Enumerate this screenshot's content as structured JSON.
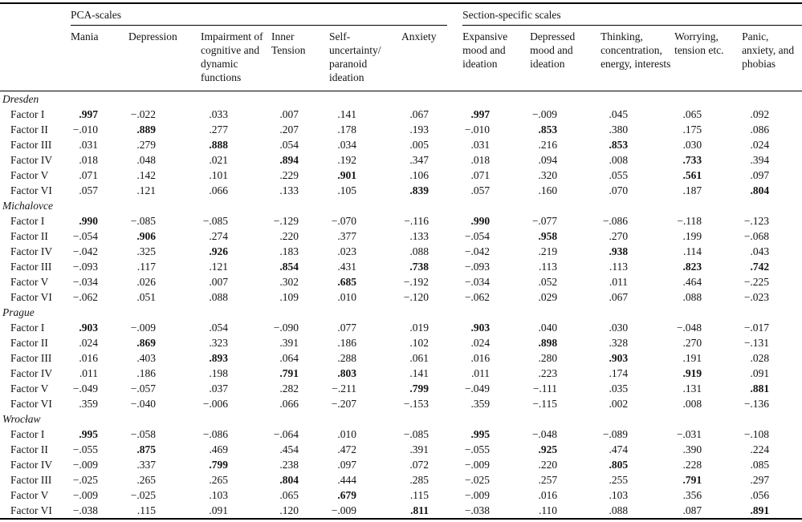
{
  "table": {
    "group_headers": [
      {
        "label": "PCA-scales",
        "span": 6
      },
      {
        "label": "Section-specific scales",
        "span": 5
      }
    ],
    "columns": [
      "Mania",
      "Depression",
      "Impairment of cognitive and dynamic functions",
      "Inner Tension",
      "Self-uncertainty/ paranoid ideation",
      "Anxiety",
      "Expansive mood and ideation",
      "Depressed mood and ideation",
      "Thinking, concentration, energy, interests",
      "Worrying, tension etc.",
      "Panic, anxiety, and phobias"
    ],
    "sections": [
      {
        "city": "Dresden",
        "rows": [
          {
            "label": "Factor I",
            "values": [
              ".997",
              "−.022",
              ".033",
              ".007",
              ".141",
              ".067",
              ".997",
              "−.009",
              ".045",
              ".065",
              ".092"
            ],
            "bold": [
              0,
              6
            ]
          },
          {
            "label": "Factor II",
            "values": [
              "−.010",
              ".889",
              ".277",
              ".207",
              ".178",
              ".193",
              "−.010",
              ".853",
              ".380",
              ".175",
              ".086"
            ],
            "bold": [
              1,
              7
            ]
          },
          {
            "label": "Factor III",
            "values": [
              ".031",
              ".279",
              ".888",
              ".054",
              ".034",
              ".005",
              ".031",
              ".216",
              ".853",
              ".030",
              ".024"
            ],
            "bold": [
              2,
              8
            ]
          },
          {
            "label": "Factor IV",
            "values": [
              ".018",
              ".048",
              ".021",
              ".894",
              ".192",
              ".347",
              ".018",
              ".094",
              ".008",
              ".733",
              ".394"
            ],
            "bold": [
              3,
              9
            ]
          },
          {
            "label": "Factor V",
            "values": [
              ".071",
              ".142",
              ".101",
              ".229",
              ".901",
              ".106",
              ".071",
              ".320",
              ".055",
              ".561",
              ".097"
            ],
            "bold": [
              4,
              9
            ]
          },
          {
            "label": "Factor VI",
            "values": [
              ".057",
              ".121",
              ".066",
              ".133",
              ".105",
              ".839",
              ".057",
              ".160",
              ".070",
              ".187",
              ".804"
            ],
            "bold": [
              5,
              10
            ]
          }
        ]
      },
      {
        "city": "Michalovce",
        "rows": [
          {
            "label": "Factor I",
            "values": [
              ".990",
              "−.085",
              "−.085",
              "−.129",
              "−.070",
              "−.116",
              ".990",
              "−.077",
              "−.086",
              "−.118",
              "−.123"
            ],
            "bold": [
              0,
              6
            ]
          },
          {
            "label": "Factor II",
            "values": [
              "−.054",
              ".906",
              ".274",
              ".220",
              ".377",
              ".133",
              "−.054",
              ".958",
              ".270",
              ".199",
              "−.068"
            ],
            "bold": [
              1,
              7
            ]
          },
          {
            "label": "Factor IV",
            "values": [
              "−.042",
              ".325",
              ".926",
              ".183",
              ".023",
              ".088",
              "−.042",
              ".219",
              ".938",
              ".114",
              ".043"
            ],
            "bold": [
              2,
              8
            ]
          },
          {
            "label": "Factor III",
            "values": [
              "−.093",
              ".117",
              ".121",
              ".854",
              ".431",
              ".738",
              "−.093",
              ".113",
              ".113",
              ".823",
              ".742"
            ],
            "bold": [
              3,
              5,
              9,
              10
            ]
          },
          {
            "label": "Factor V",
            "values": [
              "−.034",
              ".026",
              ".007",
              ".302",
              ".685",
              "−.192",
              "−.034",
              ".052",
              ".011",
              ".464",
              "−.225"
            ],
            "bold": [
              4
            ]
          },
          {
            "label": "Factor VI",
            "values": [
              "−.062",
              ".051",
              ".088",
              ".109",
              ".010",
              "−.120",
              "−.062",
              ".029",
              ".067",
              ".088",
              "−.023"
            ],
            "bold": []
          }
        ]
      },
      {
        "city": "Prague",
        "rows": [
          {
            "label": "Factor I",
            "values": [
              ".903",
              "−.009",
              ".054",
              "−.090",
              ".077",
              ".019",
              ".903",
              ".040",
              ".030",
              "−.048",
              "−.017"
            ],
            "bold": [
              0,
              6
            ]
          },
          {
            "label": "Factor II",
            "values": [
              ".024",
              ".869",
              ".323",
              ".391",
              ".186",
              ".102",
              ".024",
              ".898",
              ".328",
              ".270",
              "−.131"
            ],
            "bold": [
              1,
              7
            ]
          },
          {
            "label": "Factor III",
            "values": [
              ".016",
              ".403",
              ".893",
              ".064",
              ".288",
              ".061",
              ".016",
              ".280",
              ".903",
              ".191",
              ".028"
            ],
            "bold": [
              2,
              8
            ]
          },
          {
            "label": "Factor IV",
            "values": [
              ".011",
              ".186",
              ".198",
              ".791",
              ".803",
              ".141",
              ".011",
              ".223",
              ".174",
              ".919",
              ".091"
            ],
            "bold": [
              3,
              4,
              9
            ]
          },
          {
            "label": "Factor V",
            "values": [
              "−.049",
              "−.057",
              ".037",
              ".282",
              "−.211",
              ".799",
              "−.049",
              "−.111",
              ".035",
              ".131",
              ".881"
            ],
            "bold": [
              5,
              10
            ]
          },
          {
            "label": "Factor VI",
            "values": [
              ".359",
              "−.040",
              "−.006",
              ".066",
              "−.207",
              "−.153",
              ".359",
              "−.115",
              ".002",
              ".008",
              "−.136"
            ],
            "bold": []
          }
        ]
      },
      {
        "city": "Wrocław",
        "rows": [
          {
            "label": "Factor I",
            "values": [
              ".995",
              "−.058",
              "−.086",
              "−.064",
              ".010",
              "−.085",
              ".995",
              "−.048",
              "−.089",
              "−.031",
              "−.108"
            ],
            "bold": [
              0,
              6
            ]
          },
          {
            "label": "Factor II",
            "values": [
              "−.055",
              ".875",
              ".469",
              ".454",
              ".472",
              ".391",
              "−.055",
              ".925",
              ".474",
              ".390",
              ".224"
            ],
            "bold": [
              1,
              7
            ]
          },
          {
            "label": "Factor IV",
            "values": [
              "−.009",
              ".337",
              ".799",
              ".238",
              ".097",
              ".072",
              "−.009",
              ".220",
              ".805",
              ".228",
              ".085"
            ],
            "bold": [
              2,
              8
            ]
          },
          {
            "label": "Factor III",
            "values": [
              "−.025",
              ".265",
              ".265",
              ".804",
              ".444",
              ".285",
              "−.025",
              ".257",
              ".255",
              ".791",
              ".297"
            ],
            "bold": [
              3,
              9
            ]
          },
          {
            "label": "Factor V",
            "values": [
              "−.009",
              "−.025",
              ".103",
              ".065",
              ".679",
              ".115",
              "−.009",
              ".016",
              ".103",
              ".356",
              ".056"
            ],
            "bold": [
              4
            ]
          },
          {
            "label": "Factor VI",
            "values": [
              "−.038",
              ".115",
              ".091",
              ".120",
              "−.009",
              ".811",
              "−.038",
              ".110",
              ".088",
              ".087",
              ".891"
            ],
            "bold": [
              5,
              10
            ]
          }
        ]
      }
    ]
  }
}
